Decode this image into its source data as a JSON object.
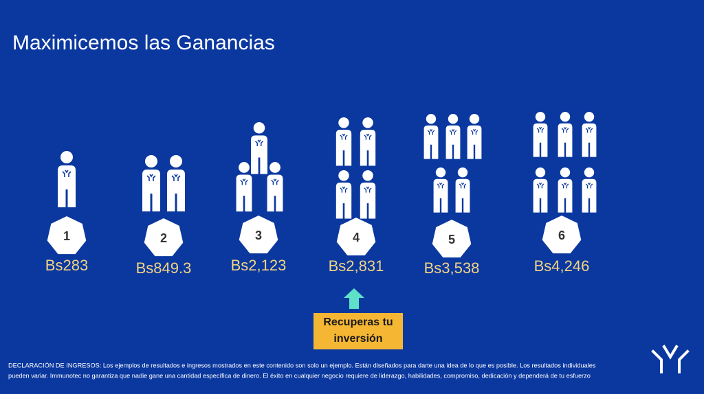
{
  "title": "Maximicemos las Ganancias",
  "tiers": [
    {
      "number": "1",
      "amount": "Bs283"
    },
    {
      "number": "2",
      "amount": "Bs849.3"
    },
    {
      "number": "3",
      "amount": "Bs2,123"
    },
    {
      "number": "4",
      "amount": "Bs2,831"
    },
    {
      "number": "5",
      "amount": "Bs3,538"
    },
    {
      "number": "6",
      "amount": "Bs4,246"
    }
  ],
  "callout": {
    "lines": [
      "Recuperas tu",
      "inversión"
    ]
  },
  "disclaimer": {
    "lines": [
      "DECLARACIÓN DE INGRESOS: Los ejemplos de resultados e ingresos mostrados en este contenido son solo un ejemplo. Están diseñados para darte una idea de lo que es posible. Los resultados individuales",
      "pueden variar. Immunotec no garantiza que nadie gane una cantidad específica de dinero. El éxito en cualquier negocio requiere de liderazgo, habilidades, compromiso, dedicación y dependerá de tu esfuerzo"
    ]
  }
}
